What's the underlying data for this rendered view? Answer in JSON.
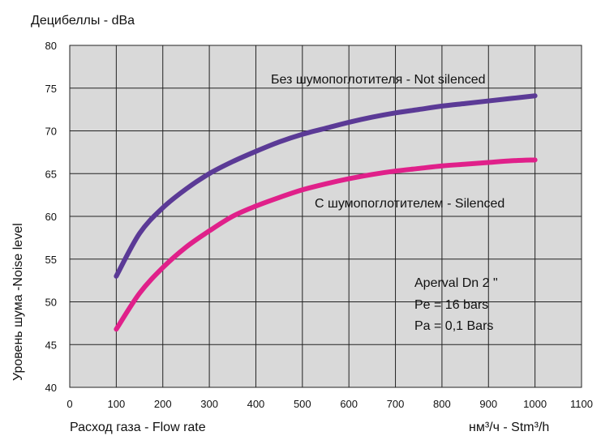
{
  "chart_data": {
    "type": "line",
    "title": "",
    "ylabel_top": "Децибеллы - dBa",
    "ylabel_side": "Уровень шума -Noise level",
    "xlabel": "Расход газа - Flow rate",
    "xunit": "нм³/ч - Stm³/h",
    "xlim": [
      0,
      1100
    ],
    "ylim": [
      40,
      80
    ],
    "x_ticks": [
      0,
      100,
      200,
      300,
      400,
      500,
      600,
      700,
      800,
      900,
      1000,
      1100
    ],
    "y_ticks": [
      40,
      45,
      50,
      55,
      60,
      65,
      70,
      75,
      80
    ],
    "grid": true,
    "background": "#d9d9d9",
    "series": [
      {
        "name": "Без шумопоглотителя - Not silenced",
        "color": "#5b3a96",
        "x": [
          100,
          150,
          200,
          250,
          300,
          350,
          400,
          450,
          500,
          550,
          600,
          650,
          700,
          750,
          800,
          850,
          900,
          950,
          1000
        ],
        "y": [
          53.0,
          58.0,
          61.0,
          63.2,
          65.0,
          66.4,
          67.6,
          68.7,
          69.6,
          70.3,
          71.0,
          71.6,
          72.1,
          72.5,
          72.9,
          73.2,
          73.5,
          73.8,
          74.1
        ]
      },
      {
        "name": "С шумопоглотителем - Silenced",
        "color": "#e0208a",
        "x": [
          100,
          150,
          200,
          250,
          300,
          350,
          400,
          450,
          500,
          550,
          600,
          650,
          700,
          750,
          800,
          850,
          900,
          950,
          1000
        ],
        "y": [
          46.8,
          51.0,
          54.0,
          56.4,
          58.3,
          60.0,
          61.2,
          62.2,
          63.1,
          63.8,
          64.4,
          64.9,
          65.3,
          65.6,
          65.9,
          66.1,
          66.3,
          66.5,
          66.6
        ]
      }
    ],
    "annotations": [
      "Aperval Dn 2 \"",
      "Pe = 16 bars",
      "Pa = 0,1 Bars"
    ]
  }
}
